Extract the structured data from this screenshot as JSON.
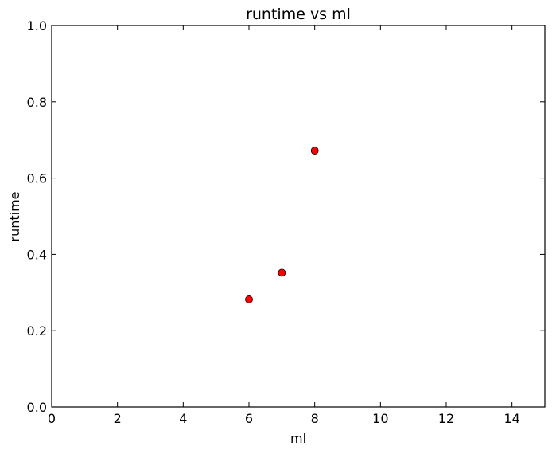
{
  "chart_data": {
    "type": "scatter",
    "title": "runtime vs ml",
    "xlabel": "ml",
    "ylabel": "runtime",
    "xlim": [
      0,
      15
    ],
    "ylim": [
      0,
      1.0
    ],
    "xticks": [
      0,
      2,
      4,
      6,
      8,
      10,
      12,
      14
    ],
    "xtick_labels": [
      "0",
      "2",
      "4",
      "6",
      "8",
      "10",
      "12",
      "14"
    ],
    "yticks": [
      0,
      0.2,
      0.4,
      0.6,
      0.8,
      1.0
    ],
    "ytick_labels": [
      "0.0",
      "0.2",
      "0.4",
      "0.6",
      "0.8",
      "1.0"
    ],
    "grid": false,
    "series": [
      {
        "color": "#ff0000",
        "x": [
          6,
          7,
          8
        ],
        "y": [
          0.282,
          0.352,
          0.672
        ]
      }
    ]
  }
}
